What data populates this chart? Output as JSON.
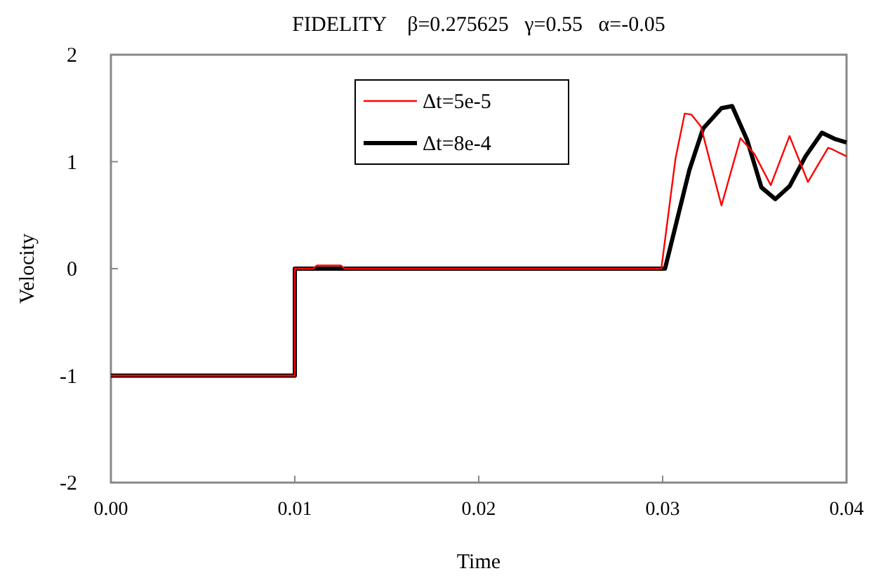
{
  "chart_data": {
    "type": "line",
    "title": "FIDELITY    β=0.275625   γ=0.55   α=-0.05",
    "xlabel": "Time",
    "ylabel": "Velocity",
    "xlim": [
      0,
      0.04
    ],
    "ylim": [
      -2,
      2
    ],
    "xticks": [
      {
        "value": 0,
        "label": "0.00"
      },
      {
        "value": 0.01,
        "label": "0.01"
      },
      {
        "value": 0.02,
        "label": "0.02"
      },
      {
        "value": 0.03,
        "label": "0.03"
      },
      {
        "value": 0.04,
        "label": "0.04"
      }
    ],
    "yticks": [
      -2,
      -1,
      0,
      1,
      2
    ],
    "grid": false,
    "legend": "top",
    "line_style": "solid",
    "series": [
      {
        "name": "Δt=5e-5",
        "color": "#ff0000",
        "x": [
          0,
          0.01,
          0.01,
          0.011,
          0.0112,
          0.0125,
          0.0127,
          0.02993,
          0.0307,
          0.0312,
          0.03157,
          0.03208,
          0.0332,
          0.03423,
          0.035,
          0.03588,
          0.0369,
          0.0379,
          0.039,
          0.03929,
          0.04
        ],
        "values": [
          -1,
          -1,
          0,
          0,
          0.03,
          0.03,
          0,
          0,
          1.03,
          1.45,
          1.44,
          1.33,
          0.59,
          1.22,
          1.07,
          0.78,
          1.24,
          0.81,
          1.13,
          1.11,
          1.05
        ]
      },
      {
        "name": "Δt=8e-4",
        "color": "#000000",
        "x": [
          0,
          0.01,
          0.01,
          0.03013,
          0.03145,
          0.0322,
          0.0332,
          0.03378,
          0.0346,
          0.03537,
          0.03613,
          0.0369,
          0.03777,
          0.03866,
          0.0394,
          0.04
        ],
        "values": [
          -1,
          -1,
          0,
          0,
          0.92,
          1.31,
          1.5,
          1.52,
          1.2,
          0.76,
          0.65,
          0.77,
          1.05,
          1.27,
          1.21,
          1.18
        ]
      }
    ]
  }
}
